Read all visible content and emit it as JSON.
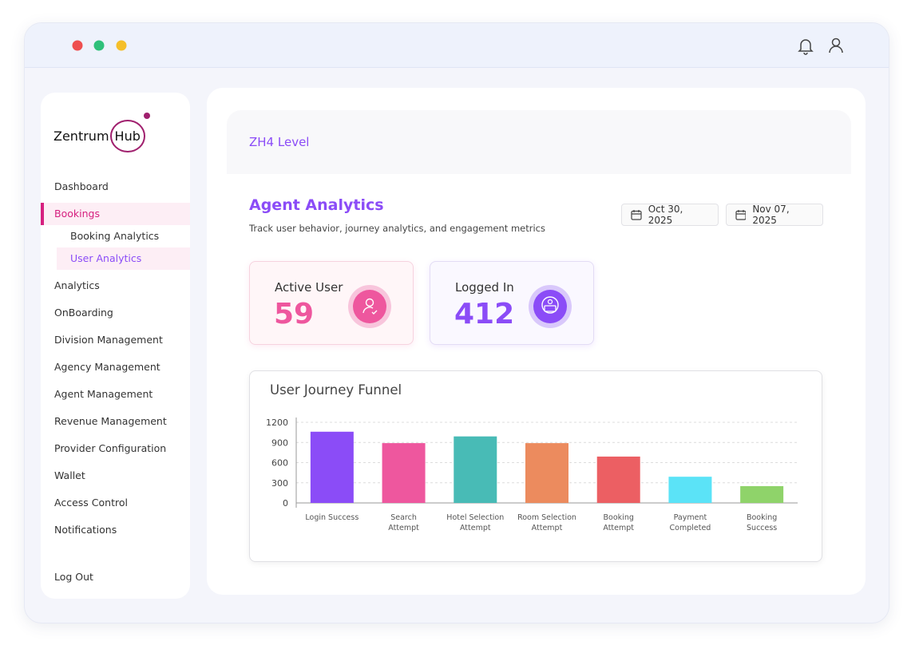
{
  "brand": {
    "name": "Zentrum",
    "suffix": "Hub"
  },
  "nav": [
    "Dashboard",
    "Bookings",
    "Booking Analytics",
    "User Analytics",
    "Analytics",
    "OnBoarding",
    "Division Management",
    "Agency Management",
    "Agent Management",
    "Revenue Management",
    "Provider Configuration",
    "Wallet",
    "Access Control",
    "Notifications",
    "Log Out"
  ],
  "header": {
    "title": "ZH4 Level"
  },
  "analytics": {
    "title": "Agent Analytics",
    "subtitle": "Track user behavior, journey analytics, and engagement metrics"
  },
  "dates": [
    "Oct 30, 2025",
    "Nov 07, 2025"
  ],
  "stats": [
    {
      "label": "Active User",
      "value": "59"
    },
    {
      "label": "Logged In",
      "value": "412"
    }
  ],
  "chart_data": {
    "type": "bar",
    "title": "User Journey Funnel",
    "categories": [
      "Login Success",
      "Search\nAttempt",
      "Hotel Selection\nAttempt",
      "Room Selection\nAttempt",
      "Booking\nAttempt",
      "Payment\nCompleted",
      "Booking\nSuccess"
    ],
    "values": [
      1060,
      890,
      990,
      890,
      690,
      390,
      250
    ],
    "colors": [
      "#8b4cf7",
      "#ee579e",
      "#48bbb6",
      "#ec8b5e",
      "#ec5f63",
      "#5be3f7",
      "#8fd36a"
    ],
    "ylim": [
      0,
      1200
    ],
    "yticks": [
      0,
      300,
      600,
      900,
      1200
    ],
    "grid": true
  }
}
